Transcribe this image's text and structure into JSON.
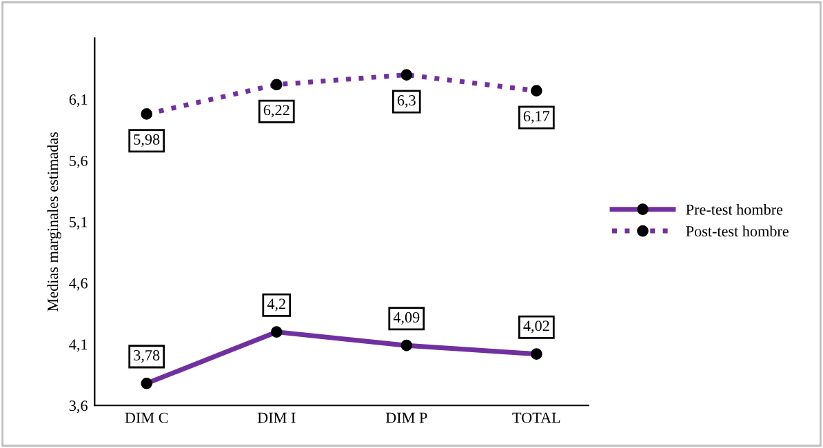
{
  "chart_data": {
    "type": "line",
    "ylabel": "Medias marginales estimadas",
    "categories": [
      "DIM C",
      "DIM I",
      "DIM P",
      "TOTAL"
    ],
    "series": [
      {
        "name": "Pre-test hombre",
        "color": "#7030a0",
        "values": [
          3.78,
          4.2,
          4.09,
          4.02
        ],
        "value_labels": [
          "3,78",
          "4,2",
          "4,09",
          "4,02"
        ],
        "line_style": "solid"
      },
      {
        "name": "Post-test hombre",
        "color": "#7030a0",
        "values": [
          5.98,
          6.22,
          6.3,
          6.17
        ],
        "value_labels": [
          "5,98",
          "6,22",
          "6,3",
          "6,17"
        ],
        "line_style": "dotted"
      }
    ],
    "ylim": [
      3.6,
      6.6
    ],
    "yticks": [
      {
        "value": 3.6,
        "label": "3,6"
      },
      {
        "value": 4.1,
        "label": "4,1"
      },
      {
        "value": 4.6,
        "label": "4,6"
      },
      {
        "value": 5.1,
        "label": "5,1"
      },
      {
        "value": 5.6,
        "label": "5,6"
      },
      {
        "value": 6.1,
        "label": "6,1"
      }
    ],
    "marker": "circle",
    "legend": "right",
    "grid": false
  }
}
